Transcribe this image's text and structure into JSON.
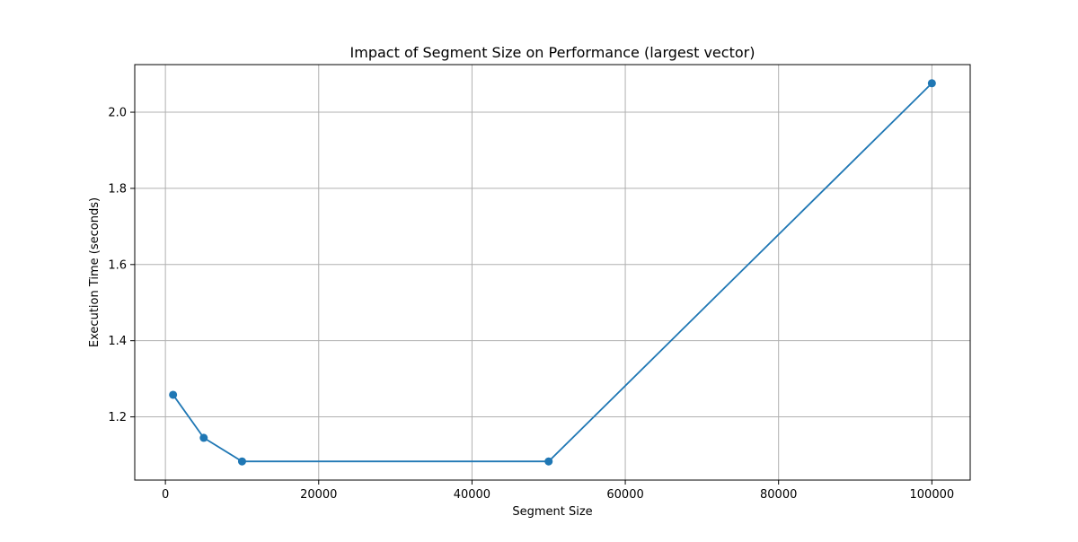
{
  "chart_data": {
    "type": "line",
    "title": "Impact of Segment Size on Performance (largest vector)",
    "xlabel": "Segment Size",
    "ylabel": "Execution Time (seconds)",
    "x": [
      1000,
      5000,
      10000,
      50000,
      100000
    ],
    "series": [
      {
        "values": [
          1.258,
          1.145,
          1.083,
          1.083,
          2.076
        ],
        "color": "#1f77b4",
        "marker": "circle"
      }
    ],
    "xlim": [
      -4000,
      105000
    ],
    "ylim": [
      1.034,
      2.125
    ],
    "xticks": [
      0,
      20000,
      40000,
      60000,
      80000,
      100000
    ],
    "xtick_labels": [
      "0",
      "20000",
      "40000",
      "60000",
      "80000",
      "100000"
    ],
    "yticks": [
      1.2,
      1.4,
      1.6,
      1.8,
      2.0
    ],
    "ytick_labels": [
      "1.2",
      "1.4",
      "1.6",
      "1.8",
      "2.0"
    ],
    "grid": true,
    "legend": false
  }
}
